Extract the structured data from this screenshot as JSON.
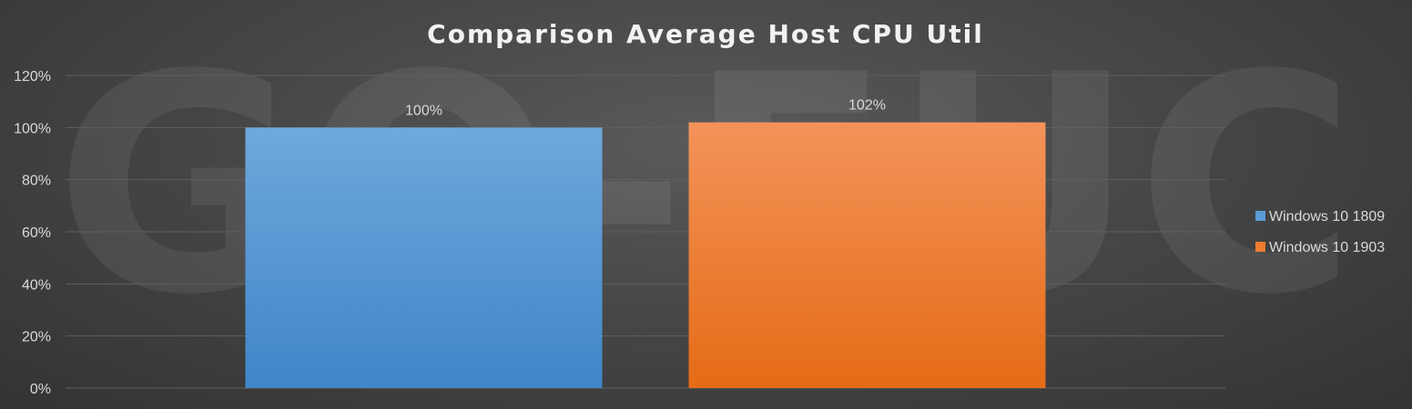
{
  "watermark_text": "GO-EUC",
  "colors": {
    "series1_top": "#6fa8dc",
    "series1_bottom": "#3f86c8",
    "series2_top": "#f3935a",
    "series2_bottom": "#e56b16"
  },
  "chart_data": {
    "type": "bar",
    "title": "Comparison Average Host CPU Util",
    "categories": [
      "Windows 10 1809",
      "Windows 10 1903"
    ],
    "values": [
      100,
      102
    ],
    "data_labels": [
      "100%",
      "102%"
    ],
    "ylim": [
      0,
      120
    ],
    "y_ticks": [
      0,
      20,
      40,
      60,
      80,
      100,
      120
    ],
    "y_tick_labels": [
      "0%",
      "20%",
      "40%",
      "60%",
      "80%",
      "100%",
      "120%"
    ],
    "grid": true,
    "legend_position": "right",
    "legend": [
      {
        "name": "Windows 10 1809",
        "color": "#5b9bd5"
      },
      {
        "name": "Windows 10 1903",
        "color": "#ed7d31"
      }
    ]
  }
}
